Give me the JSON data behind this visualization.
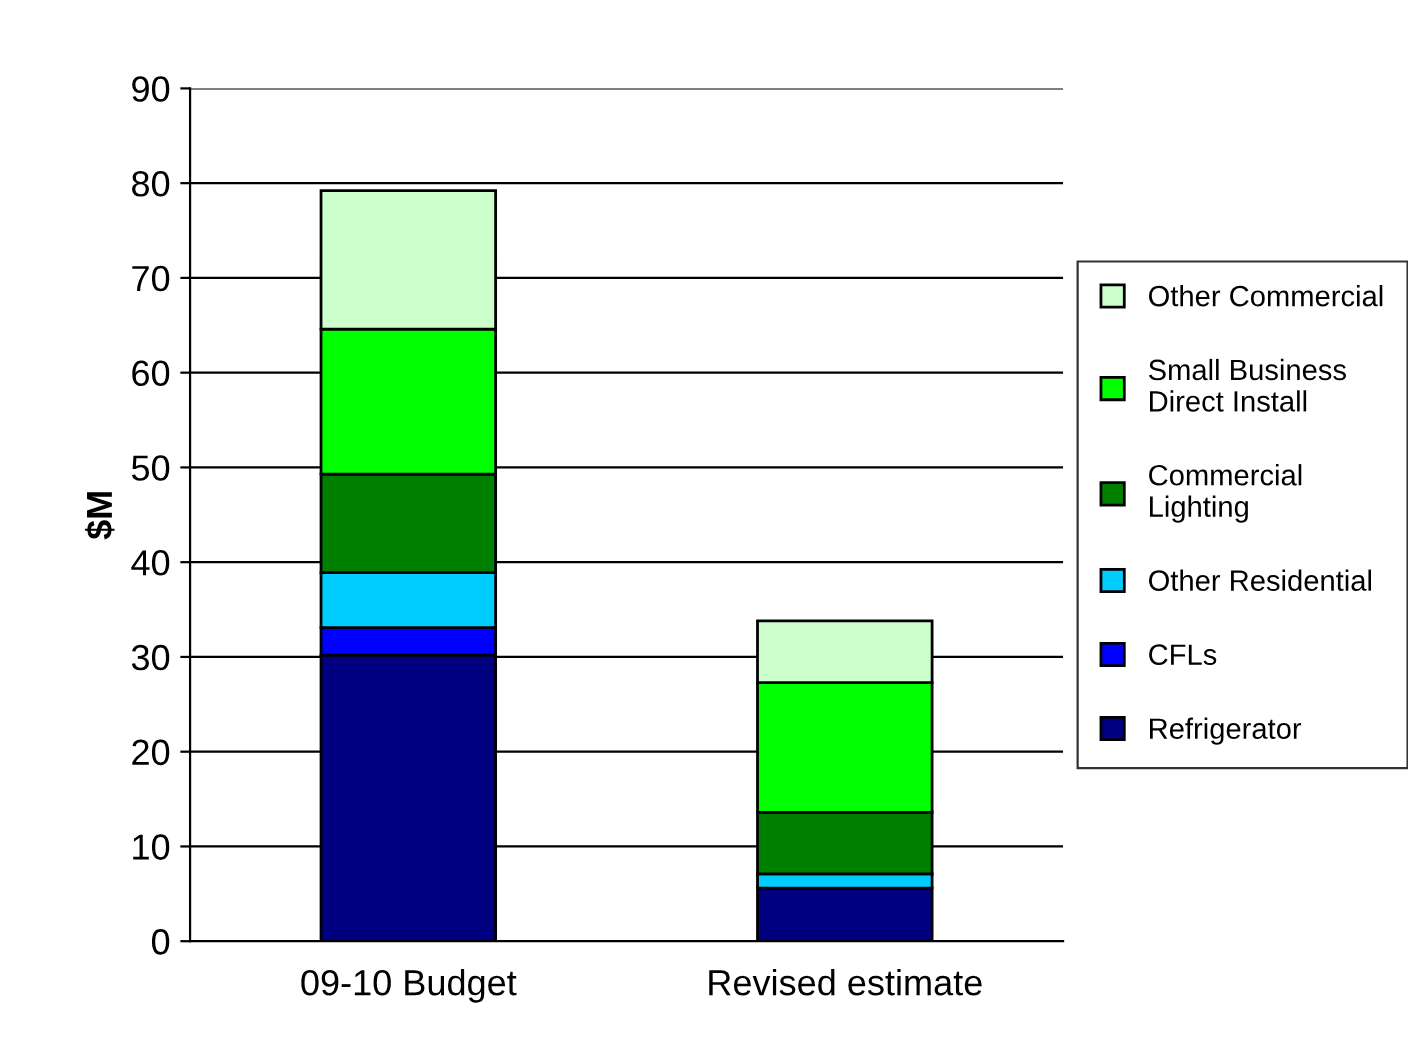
{
  "chart_data": {
    "type": "bar",
    "stacked": true,
    "ylabel": "$M",
    "categories": [
      "09-10 Budget",
      "Revised estimate"
    ],
    "ylim": [
      0,
      90
    ],
    "yticks": [
      0,
      10,
      20,
      30,
      40,
      50,
      60,
      70,
      80,
      90
    ],
    "grid": "y",
    "legend": "right",
    "series": [
      {
        "name": "Refrigerator",
        "color": "#000080",
        "values": [
          30.2,
          5.6
        ]
      },
      {
        "name": "CFLs",
        "color": "#0000ff",
        "values": [
          2.9,
          0
        ]
      },
      {
        "name": "Other Residential",
        "color": "#00ccff",
        "values": [
          5.8,
          1.5
        ]
      },
      {
        "name": "Commercial\nLighting",
        "color": "#008000",
        "values": [
          10.4,
          6.5
        ]
      },
      {
        "name": "Small Business\nDirect Install",
        "color": "#00ff00",
        "values": [
          15.3,
          13.7
        ]
      },
      {
        "name": "Other Commercial",
        "color": "#ccffcc",
        "values": [
          14.6,
          6.5
        ]
      }
    ]
  }
}
